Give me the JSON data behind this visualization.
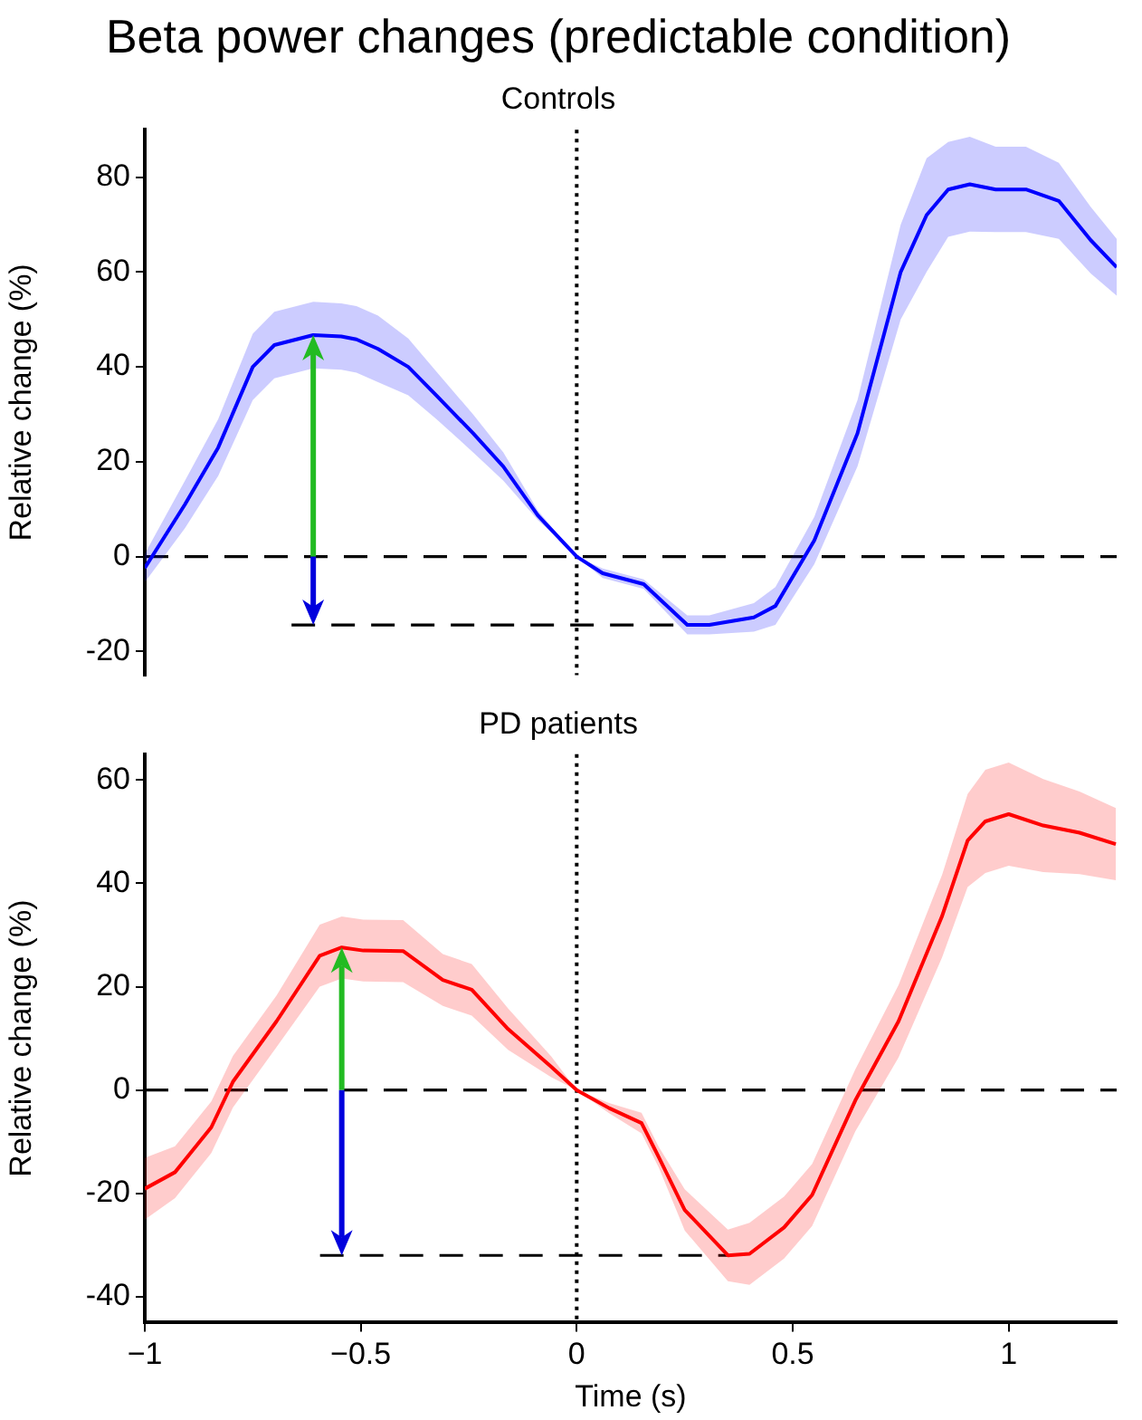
{
  "chart_data": [
    {
      "type": "line",
      "title": "Beta power changes (predictable condition)",
      "subtitle": "Controls",
      "ylabel": "Relative change (%)",
      "x": [
        -1,
        -0.907,
        -0.83,
        -0.75,
        -0.7,
        -0.61,
        -0.545,
        -0.51,
        -0.46,
        -0.39,
        -0.325,
        -0.24,
        -0.17,
        -0.09,
        0,
        0.06,
        0.155,
        0.256,
        0.307,
        0.41,
        0.46,
        0.55,
        0.65,
        0.75,
        0.81,
        0.86,
        0.91,
        0.97,
        1.04,
        1.116,
        1.19,
        1.25
      ],
      "series": [
        {
          "color": "#0000ff",
          "values": [
            -2.4,
            11,
            23,
            40,
            44.6,
            46.7,
            46.4,
            45.8,
            43.8,
            40,
            34,
            26,
            19,
            8.7,
            0,
            -3.5,
            -5.8,
            -14.4,
            -14.4,
            -12.8,
            -10.4,
            3.4,
            26,
            60,
            72,
            77.4,
            78.5,
            77.4,
            77.4,
            75,
            66.7,
            61
          ],
          "lower": [
            -5.4,
            6,
            17,
            33,
            37.6,
            39.7,
            39.4,
            38.8,
            36.8,
            34,
            29,
            22,
            16,
            7.7,
            0,
            -4.5,
            -6.8,
            -16.4,
            -16.4,
            -15.8,
            -14.4,
            -1.6,
            19,
            50,
            60,
            67.4,
            68.5,
            68.4,
            68.4,
            67,
            59.7,
            55
          ],
          "upper": [
            0.6,
            16,
            29,
            47,
            51.6,
            53.7,
            53.4,
            52.8,
            50.8,
            46,
            39,
            30,
            22,
            9.7,
            0,
            -2.5,
            -4.8,
            -12.4,
            -12.4,
            -9.8,
            -6.4,
            8.4,
            33,
            70,
            84,
            87.4,
            88.5,
            86.4,
            86.4,
            83,
            73.7,
            67
          ]
        }
      ],
      "xlim": [
        -1,
        1.25
      ],
      "xticks": [
        -1,
        -0.5,
        0,
        0.5,
        1
      ],
      "ylim": [
        -25,
        90
      ],
      "yticks": [
        -20,
        0,
        20,
        40,
        60,
        80
      ],
      "tick_labels": "y",
      "ref_lines": [
        {
          "axis": "y",
          "value": 0,
          "color": "#000000",
          "line_style": "dashed"
        },
        {
          "axis": "y",
          "value": -14.4,
          "color": "#000000",
          "line_style": "dashed"
        },
        {
          "axis": "x",
          "value": 0,
          "color": "#000000",
          "line_style": "dotted"
        }
      ],
      "grid": false,
      "legend": false
    },
    {
      "type": "line",
      "subtitle": "PD patients",
      "xlabel": "Time (s)",
      "ylabel": "Relative change (%)",
      "x": [
        -1,
        -0.93,
        -0.846,
        -0.796,
        -0.695,
        -0.595,
        -0.544,
        -0.494,
        -0.402,
        -0.31,
        -0.243,
        -0.159,
        -0.059,
        0,
        0.075,
        0.15,
        0.19,
        0.25,
        0.35,
        0.4,
        0.48,
        0.545,
        0.645,
        0.745,
        0.846,
        0.905,
        0.946,
        1,
        1.08,
        1.164,
        1.248
      ],
      "series": [
        {
          "color": "#ff0000",
          "values": [
            -19.1,
            -15.9,
            -7.2,
            1.6,
            13.3,
            26,
            27.6,
            27,
            26.9,
            21.3,
            19.4,
            11.8,
            4.5,
            0,
            -3.5,
            -6.4,
            -13,
            -23.2,
            -32,
            -31.7,
            -26.6,
            -20.3,
            -2,
            13.3,
            33.7,
            48.3,
            52,
            53.4,
            51.2,
            49.8,
            47.6
          ],
          "lower": [
            -25.1,
            -20.9,
            -12.2,
            -3.4,
            8.3,
            20,
            21.6,
            21,
            20.9,
            16.3,
            14.4,
            7.8,
            2.5,
            0,
            -4.5,
            -8.4,
            -15,
            -27.2,
            -37,
            -37.7,
            -32.6,
            -26.3,
            -8,
            6.3,
            25.7,
            39.3,
            42,
            43.4,
            42.2,
            41.8,
            40.6
          ],
          "upper": [
            -13.1,
            -10.9,
            -2.2,
            6.6,
            18.3,
            32,
            33.6,
            33,
            32.9,
            26.3,
            24.4,
            15.8,
            6.5,
            0,
            -2.5,
            -4.4,
            -11,
            -19.2,
            -27,
            -25.7,
            -20.6,
            -14.3,
            4,
            20.3,
            41.7,
            57.3,
            62,
            63.4,
            60.2,
            57.8,
            54.6
          ]
        }
      ],
      "xlim": [
        -1,
        1.25
      ],
      "xticks": [
        -1,
        -0.5,
        0,
        0.5,
        1
      ],
      "ylim": [
        -45,
        65
      ],
      "yticks": [
        -40,
        -20,
        0,
        20,
        40,
        60
      ],
      "ref_lines": [
        {
          "axis": "y",
          "value": 0,
          "color": "#000000",
          "line_style": "dashed"
        },
        {
          "axis": "y",
          "value": -32,
          "color": "#000000",
          "line_style": "dashed"
        },
        {
          "axis": "x",
          "value": 0,
          "color": "#000000",
          "line_style": "dotted"
        }
      ],
      "grid": false,
      "legend": false
    }
  ]
}
